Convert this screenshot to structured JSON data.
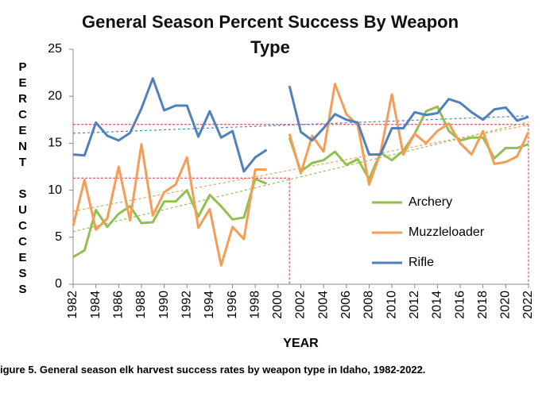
{
  "chart_data": {
    "type": "line",
    "title": "General Season Percent Success By Weapon Type",
    "ylabel": "PERCENT SUCCESS",
    "xlabel": "YEAR",
    "caption": "igure 5. General season elk harvest success rates by weapon type in Idaho, 1982-2022.",
    "x": [
      1982,
      1983,
      1984,
      1985,
      1986,
      1987,
      1988,
      1989,
      1990,
      1991,
      1992,
      1993,
      1994,
      1995,
      1996,
      1997,
      1998,
      1999,
      2000,
      2001,
      2002,
      2003,
      2004,
      2005,
      2006,
      2007,
      2008,
      2009,
      2010,
      2011,
      2012,
      2013,
      2014,
      2015,
      2016,
      2017,
      2018,
      2019,
      2020,
      2021,
      2022
    ],
    "series": [
      {
        "name": "Archery",
        "color": "#92c050",
        "values": [
          2.9,
          3.6,
          7.9,
          6.1,
          7.5,
          8.3,
          6.5,
          6.6,
          8.8,
          8.8,
          10.0,
          7.2,
          9.5,
          8.3,
          6.9,
          7.1,
          11.2,
          10.7,
          null,
          15.6,
          12.0,
          12.9,
          13.2,
          14.1,
          12.7,
          13.3,
          11.2,
          14.0,
          13.2,
          14.2,
          16.0,
          18.4,
          18.9,
          16.3,
          15.3,
          15.6,
          15.6,
          13.4,
          14.5,
          14.5,
          14.9
        ]
      },
      {
        "name": "Muzzleloader",
        "color": "#f59d56",
        "values": [
          6.2,
          11.1,
          5.8,
          7.0,
          12.5,
          6.8,
          14.9,
          7.3,
          9.8,
          10.6,
          13.5,
          6.0,
          8.0,
          2.0,
          6.1,
          4.8,
          12.2,
          12.2,
          null,
          16.0,
          11.8,
          15.8,
          14.1,
          21.3,
          18.1,
          16.9,
          10.6,
          14.0,
          20.2,
          13.8,
          16.0,
          15.0,
          16.3,
          17.1,
          15.0,
          13.8,
          16.3,
          12.8,
          13.0,
          13.6,
          16.2
        ]
      },
      {
        "name": "Rifle",
        "color": "#4f81bd",
        "values": [
          13.8,
          13.7,
          17.2,
          15.8,
          15.3,
          16.1,
          18.7,
          21.9,
          18.5,
          19.0,
          19.0,
          15.7,
          18.4,
          15.6,
          16.3,
          12.0,
          13.5,
          14.3,
          null,
          21.1,
          16.2,
          15.3,
          16.6,
          18.1,
          17.5,
          17.2,
          13.8,
          13.8,
          16.6,
          16.6,
          18.3,
          18.0,
          18.2,
          19.7,
          19.3,
          18.3,
          17.5,
          18.6,
          18.8,
          17.4,
          17.8
        ]
      }
    ],
    "xlim": [
      1982,
      2022
    ],
    "xticks": [
      1982,
      1984,
      1986,
      1988,
      1990,
      1992,
      1994,
      1996,
      1998,
      2000,
      2002,
      2004,
      2006,
      2008,
      2010,
      2012,
      2014,
      2016,
      2018,
      2020,
      2022
    ],
    "ylim": [
      0,
      25
    ],
    "yticks": [
      0,
      5,
      10,
      15,
      20,
      25
    ],
    "trendlines": true,
    "reference_lines": [
      {
        "x": 2022,
        "y": 17
      },
      {
        "x": 2001,
        "y": 11.3
      }
    ],
    "reference_color": "#e0313a",
    "legend": "right"
  }
}
